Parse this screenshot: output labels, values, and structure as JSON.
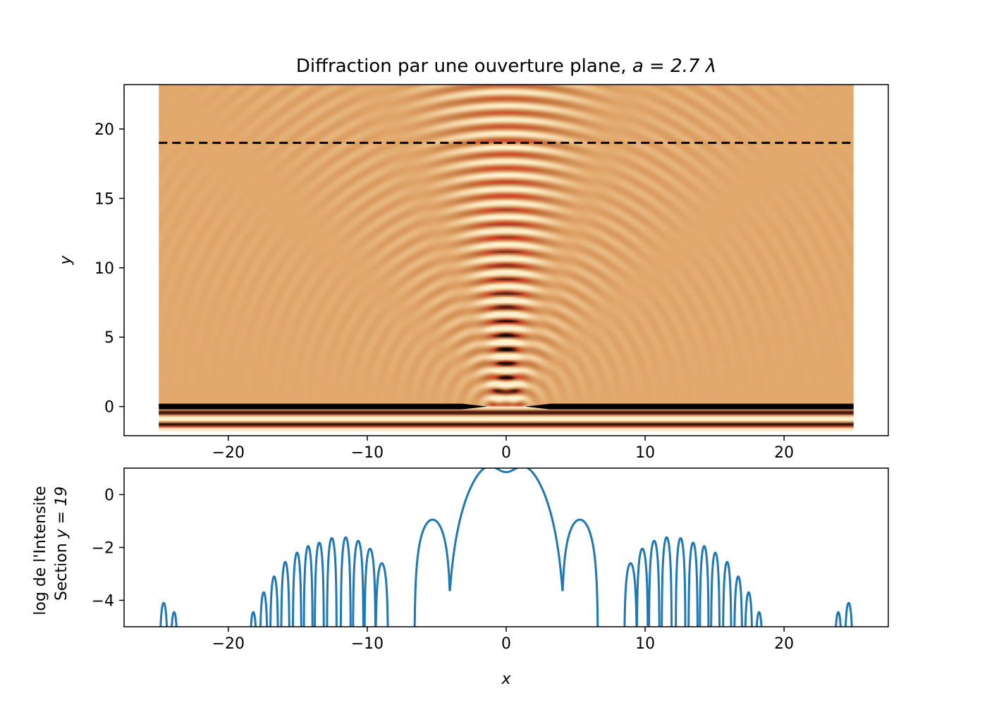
{
  "chart_data": [
    {
      "type": "heatmap",
      "title": "Diffraction par une ouverture plane, ",
      "title_math": "a = 2.7 λ",
      "ylabel": "y",
      "xlim": [
        -27.5,
        27.5
      ],
      "ylim": [
        -2.1,
        23.2
      ],
      "extent_x": [
        -25,
        25
      ],
      "extent_y": [
        -1.8,
        23.2
      ],
      "x_ticks": [
        -20,
        -10,
        0,
        10,
        20
      ],
      "x_tick_labels": [
        "−20",
        "−10",
        "0",
        "10",
        "20"
      ],
      "y_ticks": [
        0,
        5,
        10,
        15,
        20
      ],
      "y_tick_labels": [
        "0",
        "5",
        "10",
        "15",
        "20"
      ],
      "aperture_half_width": 1.35,
      "wavelength": 1.0,
      "screen_y": 0,
      "section_line_y": 19,
      "colormap": "copper-like",
      "colors": {
        "light": "#e2a86c",
        "mid": "#c47a45",
        "dark": "#000000",
        "bright": "#fff2d0",
        "accent": "#d6452a"
      }
    },
    {
      "type": "line",
      "xlabel": "x",
      "ylabel_line1": "log de l'Intensite",
      "ylabel_line2": "Section ",
      "ylabel_math": "y = 19",
      "xlim": [
        -27.5,
        27.5
      ],
      "ylim": [
        -5,
        1
      ],
      "x_ticks": [
        -20,
        -10,
        0,
        10,
        20
      ],
      "x_tick_labels": [
        "−20",
        "−10",
        "0",
        "10",
        "20"
      ],
      "y_ticks": [
        -4,
        -2,
        0
      ],
      "y_tick_labels": [
        "−4",
        "−2",
        "0"
      ],
      "series": [
        {
          "color": "#1f77b4",
          "main_lobe": {
            "x_range": [
              -4.3,
              4.3
            ],
            "peak_x": 1.9,
            "peak_y": 1.5,
            "center_y": 0.85
          },
          "lobes": [
            {
              "x": 5.3,
              "y": -0.95,
              "half_width": 1.3
            },
            {
              "x": 8.95,
              "y": -2.6,
              "half_width": 0.45
            },
            {
              "x": 9.8,
              "y": -2.05,
              "half_width": 0.4
            },
            {
              "x": 10.65,
              "y": -1.75,
              "half_width": 0.38
            },
            {
              "x": 11.55,
              "y": -1.62,
              "half_width": 0.36
            },
            {
              "x": 12.55,
              "y": -1.65,
              "half_width": 0.35
            },
            {
              "x": 13.45,
              "y": -1.82,
              "half_width": 0.33
            },
            {
              "x": 14.25,
              "y": -1.95,
              "half_width": 0.32
            },
            {
              "x": 15.05,
              "y": -2.2,
              "half_width": 0.31
            },
            {
              "x": 15.9,
              "y": -2.55,
              "half_width": 0.3
            },
            {
              "x": 16.7,
              "y": -3.1,
              "half_width": 0.29
            },
            {
              "x": 17.45,
              "y": -3.7,
              "half_width": 0.27
            },
            {
              "x": 18.2,
              "y": -4.45,
              "half_width": 0.25
            },
            {
              "x": 23.9,
              "y": -4.45,
              "half_width": 0.25
            },
            {
              "x": 24.65,
              "y": -4.1,
              "half_width": 0.28
            }
          ]
        }
      ]
    }
  ]
}
